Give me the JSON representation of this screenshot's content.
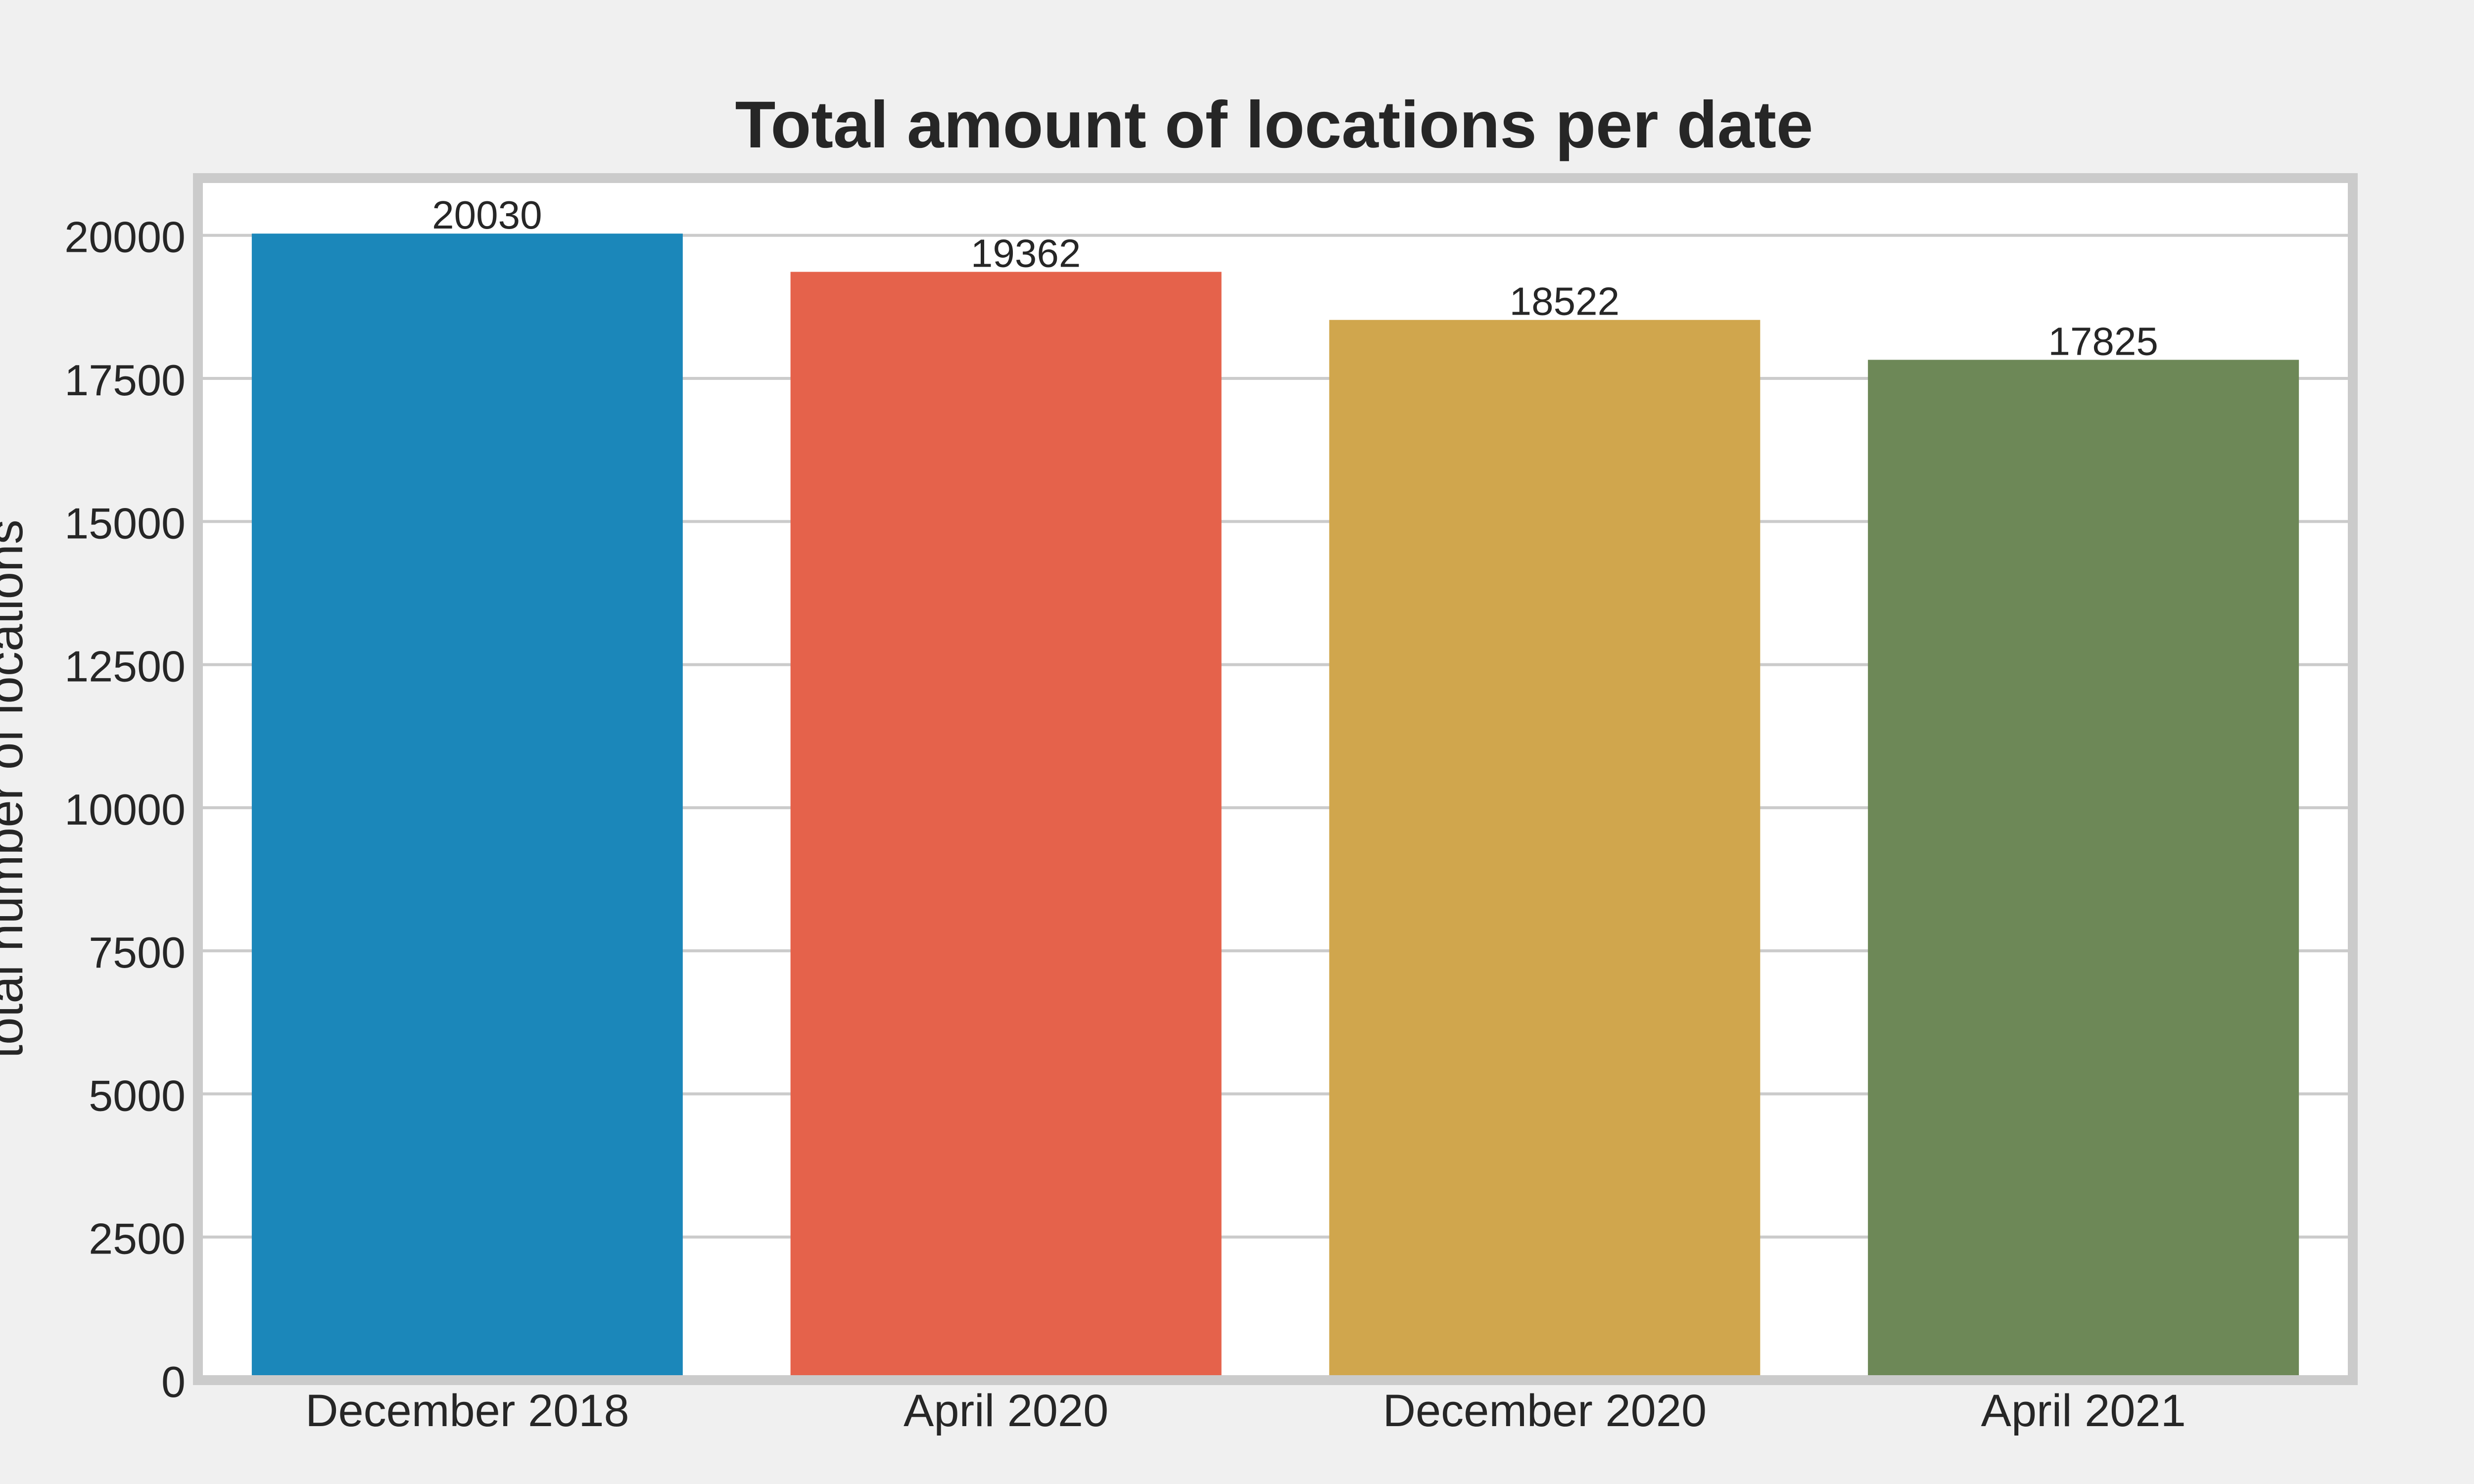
{
  "chart_data": {
    "type": "bar",
    "title": "Total amount of locations per date",
    "xlabel": "",
    "ylabel": "total number of locations",
    "categories": [
      "December 2018",
      "April 2020",
      "December 2020",
      "April 2021"
    ],
    "values": [
      20030,
      19362,
      18522,
      17825
    ],
    "value_labels": [
      "20030",
      "19362",
      "18522",
      "17825"
    ],
    "colors": [
      "#1b87ba",
      "#e5624b",
      "#d0a64d",
      "#6d8857"
    ],
    "ylim": [
      0,
      21000
    ],
    "yticks": [
      0,
      2500,
      5000,
      7500,
      10000,
      12500,
      15000,
      17500,
      20000
    ],
    "ytick_labels": [
      "0",
      "2500",
      "5000",
      "7500",
      "10000",
      "12500",
      "15000",
      "17500",
      "20000"
    ],
    "grid": "horizontal",
    "background": "#f0f0f0",
    "plot_background": "#ffffff",
    "frame_color": "#cbcbcb",
    "grid_color": "#cbcbcb",
    "legend": "none"
  }
}
